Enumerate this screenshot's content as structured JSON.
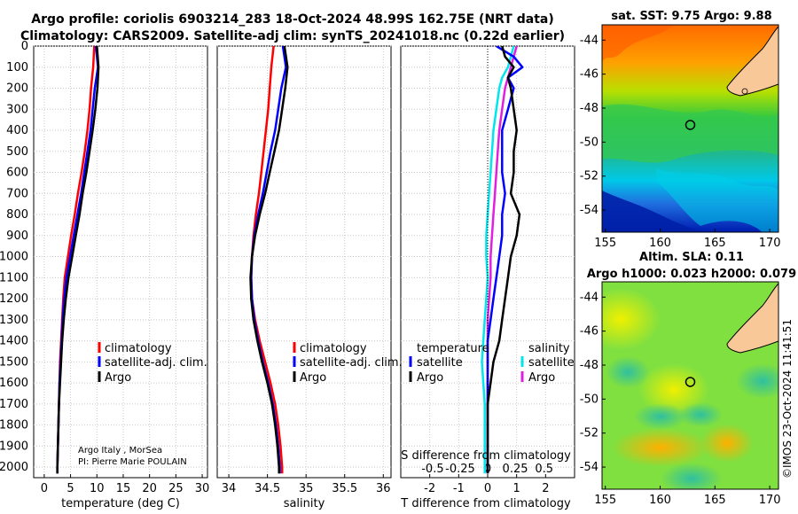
{
  "header": {
    "title1": "Argo profile: coriolis 6903214_283 18-Oct-2024 48.99S 162.75E (NRT data)",
    "title2": "Climatology: CARS2009. Satellite-adj clim: synTS_20241018.nc (0.22d earlier)"
  },
  "colors": {
    "climatology": "#ff0000",
    "satellite": "#0000ff",
    "argo": "#000000",
    "s_satellite": "#00e5ee",
    "s_argo": "#e020e0"
  },
  "chart_data": [
    {
      "type": "line",
      "name": "temperature-panel",
      "xlabel": "temperature (deg C)",
      "xlim": [
        -2,
        31
      ],
      "ylim": [
        2050,
        0
      ],
      "xticks": [
        0,
        5,
        10,
        15,
        20,
        25,
        30
      ],
      "yticks": [
        0,
        100,
        200,
        300,
        400,
        500,
        600,
        700,
        800,
        900,
        1000,
        1100,
        1200,
        1300,
        1400,
        1500,
        1600,
        1700,
        1800,
        1900,
        2000
      ],
      "legend": [
        "climatology",
        "satellite-adj. clim.",
        "Argo"
      ],
      "credit1": "Argo Italy , MorSea",
      "credit2": "PI: Pierre Marie POULAIN",
      "series": [
        {
          "name": "climatology",
          "depth": [
            0,
            100,
            200,
            300,
            400,
            500,
            600,
            700,
            800,
            900,
            1000,
            1100,
            1200,
            1300,
            1400,
            1500,
            1600,
            1700,
            1800,
            1900,
            2000,
            2030
          ],
          "values": [
            9.5,
            9.3,
            8.9,
            8.6,
            8.2,
            7.7,
            7.1,
            6.4,
            5.8,
            5.1,
            4.5,
            3.9,
            3.6,
            3.4,
            3.2,
            3.0,
            2.9,
            2.8,
            2.7,
            2.6,
            2.5,
            2.5
          ]
        },
        {
          "name": "satellite-adj. clim.",
          "depth": [
            0,
            100,
            200,
            300,
            400,
            500,
            600,
            700,
            800,
            900,
            1000,
            1100,
            1200,
            1300,
            1400,
            1500,
            1600,
            1700,
            1800,
            1900,
            2000,
            2030
          ],
          "values": [
            9.8,
            10.2,
            9.6,
            9.2,
            8.8,
            8.2,
            7.6,
            7.0,
            6.3,
            5.6,
            4.9,
            4.2,
            3.8,
            3.5,
            3.3,
            3.1,
            2.9,
            2.8,
            2.7,
            2.6,
            2.5,
            2.5
          ]
        },
        {
          "name": "Argo",
          "depth": [
            0,
            100,
            200,
            300,
            400,
            500,
            600,
            700,
            800,
            900,
            1000,
            1100,
            1200,
            1300,
            1400,
            1500,
            1600,
            1700,
            1800,
            1900,
            2000,
            2030
          ],
          "values": [
            10.0,
            10.3,
            10.1,
            9.7,
            9.2,
            8.6,
            8.0,
            7.3,
            6.7,
            6.0,
            5.3,
            4.6,
            4.1,
            3.7,
            3.4,
            3.2,
            3.0,
            2.8,
            2.7,
            2.6,
            2.5,
            2.5
          ]
        }
      ]
    },
    {
      "type": "line",
      "name": "salinity-panel",
      "xlabel": "salinity",
      "xlim": [
        33.85,
        36.1
      ],
      "ylim": [
        2050,
        0
      ],
      "xticks": [
        34,
        34.5,
        35,
        35.5,
        36
      ],
      "xticklabels": [
        "34",
        "34.5",
        "35",
        "35.5",
        "36"
      ],
      "legend": [
        "climatology",
        "satellite-adj. clim.",
        "Argo"
      ],
      "series": [
        {
          "name": "climatology",
          "depth": [
            0,
            100,
            200,
            300,
            400,
            500,
            600,
            700,
            800,
            900,
            1000,
            1100,
            1200,
            1300,
            1400,
            1500,
            1600,
            1700,
            1800,
            1900,
            2000,
            2030
          ],
          "values": [
            34.58,
            34.55,
            34.53,
            34.51,
            34.48,
            34.45,
            34.42,
            34.39,
            34.35,
            34.32,
            34.3,
            34.29,
            34.3,
            34.34,
            34.4,
            34.47,
            34.54,
            34.6,
            34.64,
            34.67,
            34.69,
            34.69
          ]
        },
        {
          "name": "satellite-adj. clim.",
          "depth": [
            0,
            100,
            200,
            300,
            400,
            500,
            600,
            700,
            800,
            900,
            1000,
            1100,
            1200,
            1300,
            1400,
            1500,
            1600,
            1700,
            1800,
            1900,
            2000,
            2030
          ],
          "values": [
            34.7,
            34.74,
            34.68,
            34.64,
            34.6,
            34.54,
            34.49,
            34.44,
            34.38,
            34.33,
            34.3,
            34.29,
            34.3,
            34.33,
            34.38,
            34.44,
            34.51,
            34.57,
            34.61,
            34.64,
            34.66,
            34.66
          ]
        },
        {
          "name": "Argo",
          "depth": [
            0,
            100,
            200,
            300,
            400,
            500,
            600,
            700,
            800,
            900,
            1000,
            1100,
            1200,
            1300,
            1400,
            1500,
            1600,
            1700,
            1800,
            1900,
            2000,
            2030
          ],
          "values": [
            34.72,
            34.76,
            34.73,
            34.69,
            34.65,
            34.59,
            34.53,
            34.47,
            34.4,
            34.34,
            34.3,
            34.28,
            34.29,
            34.32,
            34.37,
            34.43,
            34.5,
            34.56,
            34.6,
            34.63,
            34.65,
            34.65
          ]
        }
      ]
    },
    {
      "type": "line",
      "name": "difference-panel",
      "xlabel": "T difference from climatology",
      "xlabel_top": "S difference from climatology",
      "xlim": [
        -3,
        3
      ],
      "ylim": [
        2050,
        0
      ],
      "xticks": [
        -2,
        -1,
        0,
        1,
        2
      ],
      "sticklabels": [
        "-0.5",
        "-0.25",
        "0",
        "0.25",
        "0.5"
      ],
      "sticks": [
        -1.9,
        -0.95,
        0.0,
        0.95,
        1.95
      ],
      "legend_left_title": "temperature",
      "legend_right_title": "salinity",
      "legend_left": [
        "satellite",
        "Argo"
      ],
      "legend_right": [
        "satellite",
        "Argo"
      ],
      "series": [
        {
          "name": "T satellite",
          "depth": [
            0,
            50,
            100,
            150,
            200,
            300,
            400,
            500,
            600,
            700,
            800,
            900,
            1000,
            1100,
            1200,
            1300,
            1400,
            1500,
            1600,
            1700,
            1800,
            1900,
            2000,
            2030
          ],
          "values": [
            0.3,
            0.9,
            1.2,
            0.7,
            0.9,
            0.7,
            0.5,
            0.5,
            0.5,
            0.6,
            0.5,
            0.5,
            0.4,
            0.3,
            0.2,
            0.1,
            0.0,
            0.0,
            0.0,
            0.0,
            0.0,
            0.0,
            0.0,
            0.0
          ]
        },
        {
          "name": "T Argo",
          "depth": [
            0,
            50,
            100,
            150,
            200,
            300,
            400,
            500,
            600,
            700,
            800,
            900,
            1000,
            1100,
            1200,
            1300,
            1400,
            1500,
            1600,
            1700,
            1800,
            1900,
            2000,
            2030
          ],
          "values": [
            0.5,
            0.6,
            0.9,
            0.7,
            0.8,
            0.9,
            1.0,
            0.9,
            0.9,
            0.8,
            1.1,
            1.0,
            0.8,
            0.7,
            0.6,
            0.5,
            0.4,
            0.2,
            0.1,
            0.0,
            0.0,
            0.0,
            0.0,
            0.0
          ]
        },
        {
          "name": "S satellite",
          "depth": [
            0,
            50,
            100,
            150,
            200,
            300,
            400,
            500,
            600,
            700,
            800,
            900,
            1000,
            1100,
            1200,
            1300,
            1400,
            1500,
            1600,
            1700,
            1800,
            1900,
            2000,
            2030
          ],
          "values": [
            0.9,
            0.8,
            0.7,
            0.5,
            0.4,
            0.3,
            0.2,
            0.15,
            0.1,
            0.05,
            0.0,
            -0.05,
            -0.05,
            0.0,
            -0.05,
            -0.1,
            -0.15,
            -0.2,
            -0.15,
            -0.1,
            -0.1,
            -0.1,
            -0.1,
            -0.1
          ]
        },
        {
          "name": "S Argo",
          "depth": [
            0,
            50,
            100,
            150,
            200,
            300,
            400,
            500,
            600,
            700,
            800,
            900,
            1000,
            1100,
            1200,
            1300,
            1400,
            1500,
            1600,
            1700,
            1800,
            1900,
            2000,
            2030
          ],
          "values": [
            1.0,
            0.9,
            0.8,
            0.7,
            0.6,
            0.5,
            0.4,
            0.35,
            0.3,
            0.25,
            0.2,
            0.15,
            0.1,
            0.1,
            0.05,
            0.0,
            0.0,
            0.0,
            0.0,
            0.0,
            0.0,
            0.0,
            0.0,
            0.0
          ]
        }
      ]
    },
    {
      "type": "heatmap",
      "name": "sst-map",
      "title": "sat. SST: 9.75 Argo: 9.88",
      "xticks": [
        155,
        160,
        165,
        170
      ],
      "yticks": [
        -44,
        -46,
        -48,
        -50,
        -52,
        -54
      ],
      "xlim": [
        154.7,
        170.8
      ],
      "ylim": [
        -55.3,
        -43.1
      ],
      "argo_position": [
        162.75,
        -48.99
      ]
    },
    {
      "type": "heatmap",
      "name": "sla-map",
      "title1": "Altim. SLA: 0.11",
      "title2": "Argo h1000: 0.023 h2000: 0.079",
      "xticks": [
        155,
        160,
        165,
        170
      ],
      "yticks": [
        -44,
        -46,
        -48,
        -50,
        -52,
        -54
      ],
      "xlim": [
        154.7,
        170.8
      ],
      "ylim": [
        -55.3,
        -43.1
      ],
      "argo_position": [
        162.75,
        -48.99
      ]
    }
  ],
  "stamp": "©IMOS 23-Oct-2024 11:41:51"
}
